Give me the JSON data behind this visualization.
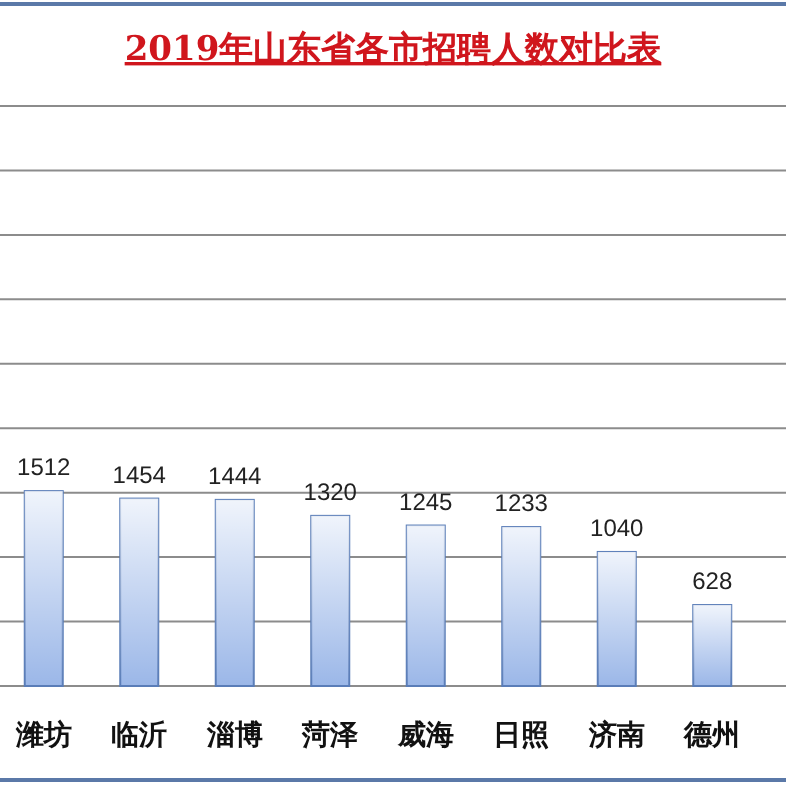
{
  "chart_data": {
    "type": "bar",
    "title": "2019年山东省各市招聘人数对比表",
    "categories": [
      "潍坊",
      "临沂",
      "淄博",
      "菏泽",
      "威海",
      "日照",
      "济南",
      "德州"
    ],
    "values": [
      1512,
      1454,
      1444,
      1320,
      1245,
      1233,
      1040,
      628
    ],
    "color": "#9bb7e8",
    "ylim": [
      0,
      4500
    ],
    "yticks": [
      {
        "value": 0,
        "label": null
      },
      {
        "value": 500,
        "label": null
      },
      {
        "value": 1000,
        "label": null
      },
      {
        "value": 1500,
        "label": null
      },
      {
        "value": 2000,
        "label": null
      },
      {
        "value": 2500,
        "label": null
      },
      {
        "value": 3000,
        "label": null
      },
      {
        "value": 3500,
        "label": null
      },
      {
        "value": 4000,
        "label": null
      },
      {
        "value": 4500,
        "label": null
      }
    ],
    "grid": "y",
    "data_labels": true
  }
}
